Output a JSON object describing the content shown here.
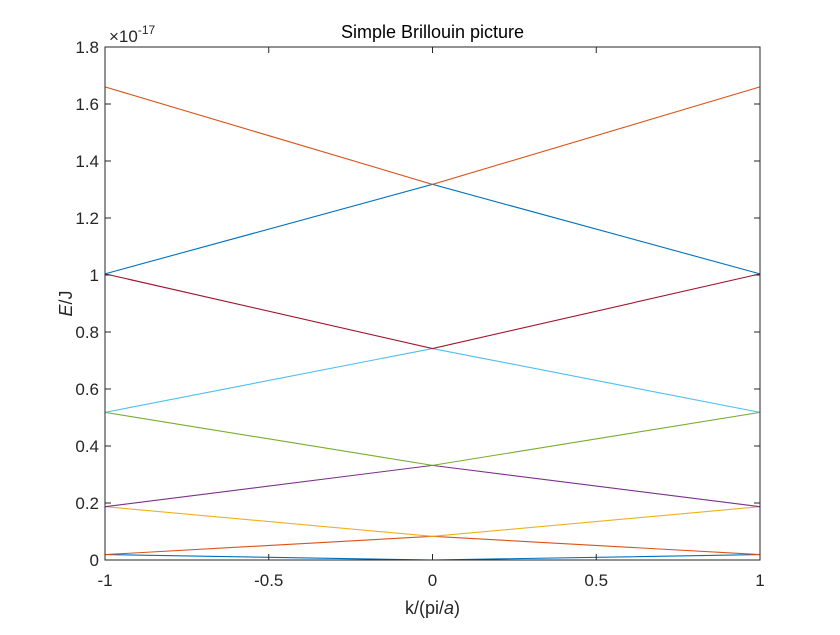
{
  "chart_data": {
    "type": "line",
    "title": "Simple Brillouin picture",
    "xlabel": "k/(pi/a)",
    "ylabel": "E/J",
    "xlim": [
      -1,
      1
    ],
    "ylim": [
      0,
      1.8
    ],
    "y_exponent_label": "×10-17",
    "y_multiplier": "1e-17",
    "xticks": [
      -1,
      -0.5,
      0,
      0.5,
      1
    ],
    "xtick_labels": [
      "-1",
      "-0.5",
      "0",
      "0.5",
      "1"
    ],
    "yticks": [
      0,
      0.2,
      0.4,
      0.6,
      0.8,
      1,
      1.2,
      1.4,
      1.6,
      1.8
    ],
    "ytick_labels": [
      "0",
      "0.2",
      "0.4",
      "0.6",
      "0.8",
      "1",
      "1.2",
      "1.4",
      "1.6",
      "1.8"
    ],
    "grid": false,
    "series": [
      {
        "color": "#0072BD",
        "points": [
          [
            -1,
            0.019
          ],
          [
            0,
            0.0
          ],
          [
            1,
            0.019
          ]
        ]
      },
      {
        "color": "#D95319",
        "points": [
          [
            -1,
            0.019
          ],
          [
            0,
            0.083
          ],
          [
            1,
            0.019
          ]
        ]
      },
      {
        "color": "#EDB120",
        "points": [
          [
            -1,
            0.187
          ],
          [
            0,
            0.083
          ],
          [
            1,
            0.187
          ]
        ]
      },
      {
        "color": "#7E2F8E",
        "points": [
          [
            -1,
            0.187
          ],
          [
            0,
            0.332
          ],
          [
            1,
            0.187
          ]
        ]
      },
      {
        "color": "#77AC30",
        "points": [
          [
            -1,
            0.518
          ],
          [
            0,
            0.332
          ],
          [
            1,
            0.518
          ]
        ]
      },
      {
        "color": "#4DBEEE",
        "points": [
          [
            -1,
            0.518
          ],
          [
            0,
            0.742
          ],
          [
            1,
            0.518
          ]
        ]
      },
      {
        "color": "#A2142F",
        "points": [
          [
            -1,
            1.004
          ],
          [
            0,
            0.742
          ],
          [
            1,
            1.004
          ]
        ]
      },
      {
        "color": "#0072BD",
        "points": [
          [
            -1,
            1.004
          ],
          [
            0,
            1.318
          ],
          [
            1,
            1.004
          ]
        ]
      },
      {
        "color": "#D95319",
        "points": [
          [
            -1,
            1.66
          ],
          [
            0,
            1.318
          ],
          [
            1,
            1.66
          ]
        ]
      }
    ]
  }
}
